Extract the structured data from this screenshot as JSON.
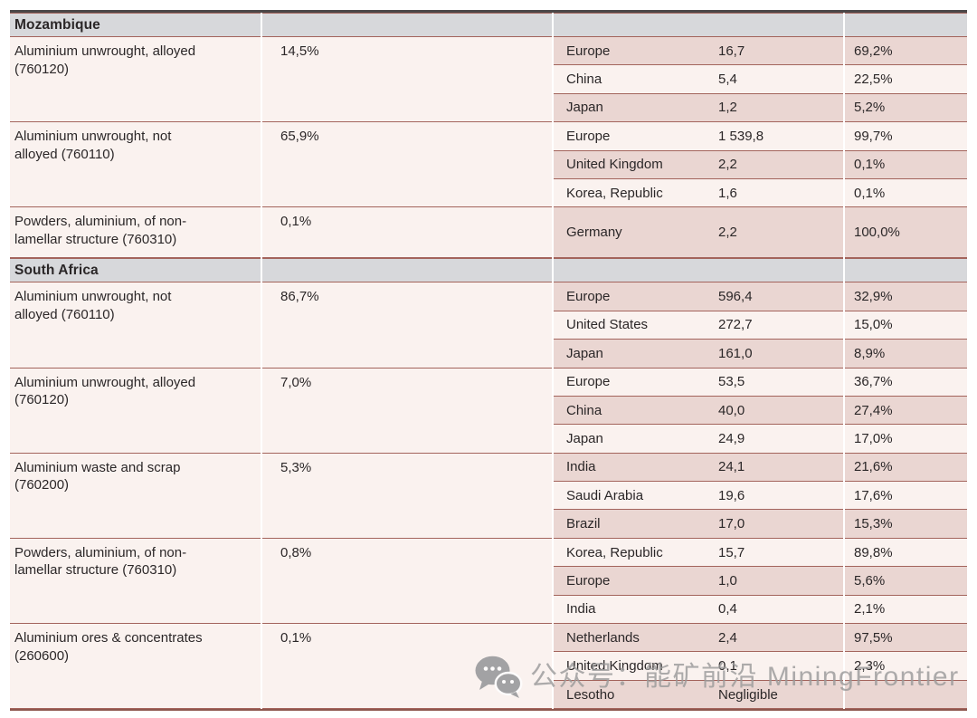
{
  "watermark": {
    "icon": "wechat-icon",
    "text": "公众号：能矿前沿 MiningFrontier"
  },
  "colors": {
    "section_header_bg": "#d7d8db",
    "row_light": "#faf2ef",
    "row_shaded": "#ead6d2",
    "grid_line": "#a3645c",
    "frame_top": "#4b4748",
    "frame_bottom": "#8e574e",
    "text": "#2b2728",
    "watermark_gray": "#9b9b9b"
  },
  "sections": [
    {
      "name": "Mozambique",
      "products": [
        {
          "name_lines": [
            "Aluminium unwrought, alloyed",
            "(760120)"
          ],
          "share": "14,5%",
          "destinations": [
            {
              "market": "Europe",
              "value": "16,7",
              "share": "69,2%"
            },
            {
              "market": "China",
              "value": "5,4",
              "share": "22,5%"
            },
            {
              "market": "Japan",
              "value": "1,2",
              "share": "5,2%"
            }
          ]
        },
        {
          "name_lines": [
            "Aluminium unwrought, not",
            "alloyed (760110)"
          ],
          "share": "65,9%",
          "destinations": [
            {
              "market": "Europe",
              "value": "1 539,8",
              "share": "99,7%"
            },
            {
              "market": "United Kingdom",
              "value": "2,2",
              "share": "0,1%"
            },
            {
              "market": "Korea, Republic",
              "value": "1,6",
              "share": "0,1%"
            }
          ]
        },
        {
          "name_lines": [
            "Powders, aluminium, of non-",
            "lamellar structure (760310)"
          ],
          "share": "0,1%",
          "destinations": [
            {
              "market": "Germany",
              "value": "2,2",
              "share": "100,0%"
            }
          ]
        }
      ]
    },
    {
      "name": "South Africa",
      "products": [
        {
          "name_lines": [
            "Aluminium unwrought, not",
            "alloyed (760110)"
          ],
          "share": "86,7%",
          "destinations": [
            {
              "market": "Europe",
              "value": "596,4",
              "share": "32,9%"
            },
            {
              "market": "United States",
              "value": "272,7",
              "share": "15,0%"
            },
            {
              "market": "Japan",
              "value": "161,0",
              "share": "8,9%"
            }
          ]
        },
        {
          "name_lines": [
            "Aluminium unwrought, alloyed",
            "(760120)"
          ],
          "share": "7,0%",
          "destinations": [
            {
              "market": "Europe",
              "value": "53,5",
              "share": "36,7%"
            },
            {
              "market": "China",
              "value": "40,0",
              "share": "27,4%"
            },
            {
              "market": "Japan",
              "value": "24,9",
              "share": "17,0%"
            }
          ]
        },
        {
          "name_lines": [
            "Aluminium waste and scrap",
            "(760200)"
          ],
          "share": "5,3%",
          "destinations": [
            {
              "market": "India",
              "value": "24,1",
              "share": "21,6%"
            },
            {
              "market": "Saudi Arabia",
              "value": "19,6",
              "share": "17,6%"
            },
            {
              "market": "Brazil",
              "value": "17,0",
              "share": "15,3%"
            }
          ]
        },
        {
          "name_lines": [
            "Powders, aluminium, of non-",
            "lamellar structure (760310)"
          ],
          "share": "0,8%",
          "destinations": [
            {
              "market": "Korea, Republic",
              "value": "15,7",
              "share": "89,8%"
            },
            {
              "market": "Europe",
              "value": "1,0",
              "share": "5,6%"
            },
            {
              "market": "India",
              "value": "0,4",
              "share": "2,1%"
            }
          ]
        },
        {
          "name_lines": [
            "Aluminium ores & concentrates",
            "(260600)"
          ],
          "share": "0,1%",
          "destinations": [
            {
              "market": "Netherlands",
              "value": "2,4",
              "share": "97,5%"
            },
            {
              "market": "United Kingdom",
              "value": "0,1",
              "share": "2,3%"
            },
            {
              "market": "Lesotho",
              "value": "Negligible",
              "share": ""
            }
          ]
        }
      ]
    }
  ]
}
